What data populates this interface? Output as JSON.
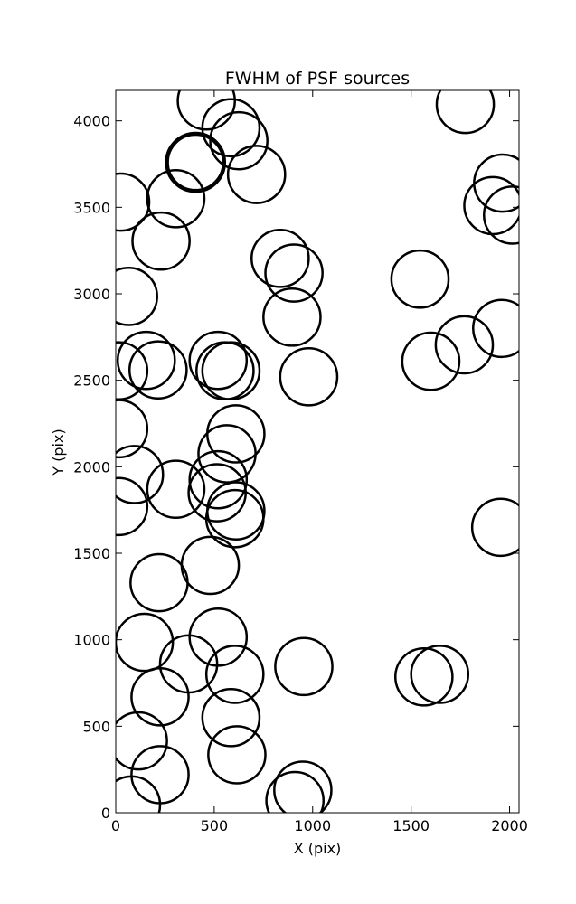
{
  "chart_data": {
    "type": "scatter",
    "title": "FWHM of PSF sources",
    "xlabel": "X (pix)",
    "ylabel": "Y (pix)",
    "xlim": [
      0,
      2048
    ],
    "ylim": [
      0,
      4176
    ],
    "xticks": [
      0,
      500,
      1000,
      1500,
      2000
    ],
    "yticks": [
      0,
      500,
      1000,
      1500,
      2000,
      2500,
      3000,
      3500,
      4000
    ],
    "xtick_labels": [
      "0",
      "500",
      "1000",
      "1500",
      "2000"
    ],
    "ytick_labels": [
      "0",
      "500",
      "1000",
      "1500",
      "2000",
      "2500",
      "3000",
      "3500",
      "4000"
    ],
    "grid": false,
    "marker": "circle",
    "marker_radius_pix": 145,
    "colors": {
      "default": "#000000",
      "highlight": "#ff00ff"
    },
    "series": [
      {
        "points": [
          {
            "x": 460,
            "y": 4115
          },
          {
            "x": 585,
            "y": 3960
          },
          {
            "x": 625,
            "y": 3885
          },
          {
            "x": 715,
            "y": 3690
          },
          {
            "x": 305,
            "y": 3550
          },
          {
            "x": 25,
            "y": 3530
          },
          {
            "x": 230,
            "y": 3305
          },
          {
            "x": 835,
            "y": 3205
          },
          {
            "x": 905,
            "y": 3120
          },
          {
            "x": 65,
            "y": 2985
          },
          {
            "x": 895,
            "y": 2865
          },
          {
            "x": 155,
            "y": 2615
          },
          {
            "x": 215,
            "y": 2560
          },
          {
            "x": 15,
            "y": 2555
          },
          {
            "x": 520,
            "y": 2615
          },
          {
            "x": 555,
            "y": 2555
          },
          {
            "x": 585,
            "y": 2555
          },
          {
            "x": 980,
            "y": 2520
          },
          {
            "x": 15,
            "y": 2220
          },
          {
            "x": 610,
            "y": 2190
          },
          {
            "x": 565,
            "y": 2075
          },
          {
            "x": 95,
            "y": 1955
          },
          {
            "x": 520,
            "y": 1925
          },
          {
            "x": 515,
            "y": 1850
          },
          {
            "x": 305,
            "y": 1870
          },
          {
            "x": 15,
            "y": 1770
          },
          {
            "x": 610,
            "y": 1745
          },
          {
            "x": 605,
            "y": 1700
          },
          {
            "x": 480,
            "y": 1430
          },
          {
            "x": 220,
            "y": 1330
          },
          {
            "x": 520,
            "y": 1015
          },
          {
            "x": 145,
            "y": 985
          },
          {
            "x": 370,
            "y": 860
          },
          {
            "x": 605,
            "y": 800
          },
          {
            "x": 225,
            "y": 670
          },
          {
            "x": 585,
            "y": 550
          },
          {
            "x": 115,
            "y": 415
          },
          {
            "x": 615,
            "y": 335
          },
          {
            "x": 225,
            "y": 220
          },
          {
            "x": 80,
            "y": 45
          },
          {
            "x": 950,
            "y": 130
          },
          {
            "x": 910,
            "y": 70
          },
          {
            "x": 955,
            "y": 845
          },
          {
            "x": 1565,
            "y": 785
          },
          {
            "x": 1645,
            "y": 800
          },
          {
            "x": 1545,
            "y": 3085
          },
          {
            "x": 1600,
            "y": 2610
          },
          {
            "x": 1770,
            "y": 2705
          },
          {
            "x": 1960,
            "y": 2800
          },
          {
            "x": 1775,
            "y": 4095
          },
          {
            "x": 1965,
            "y": 3640
          },
          {
            "x": 1915,
            "y": 3510
          },
          {
            "x": 2015,
            "y": 3455
          },
          {
            "x": 1955,
            "y": 1650
          }
        ]
      }
    ],
    "highlight_point": {
      "x": 405,
      "y": 3760
    }
  }
}
